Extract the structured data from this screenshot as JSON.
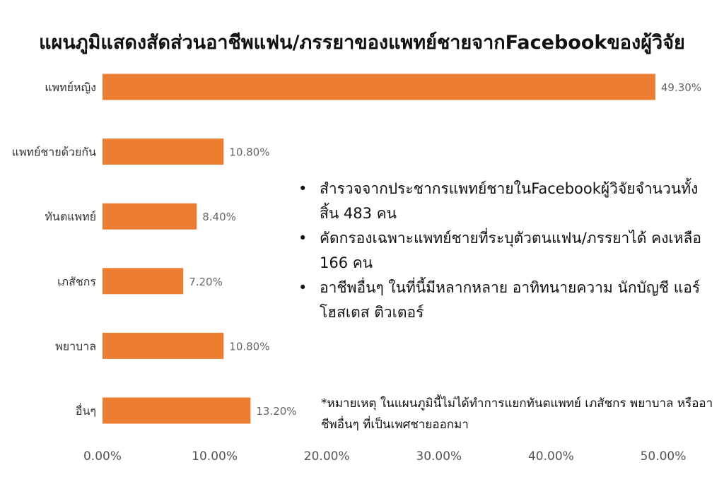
{
  "chart_data": {
    "type": "bar",
    "orientation": "horizontal",
    "title": "แผนภูมิแสดงสัดส่วนอาชีพแฟน/ภรรยาของแพทย์ชายจากFacebookของผู้วิจัย",
    "categories": [
      "แพทย์หญิง",
      "แพทย์ชายด้วยกัน",
      "ทันตแพทย์",
      "เภสัชกร",
      "พยาบาล",
      "อื่นๆ"
    ],
    "values": [
      49.3,
      10.8,
      8.4,
      7.2,
      10.8,
      13.2
    ],
    "data_labels": [
      "49.30%",
      "10.80%",
      "8.40%",
      "7.20%",
      "10.80%",
      "13.20%"
    ],
    "x_ticks": [
      "0.00%",
      "10.00%",
      "20.00%",
      "30.00%",
      "40.00%",
      "50.00%"
    ],
    "xlim": [
      0,
      50
    ],
    "xlabel": "",
    "ylabel": "",
    "grid": false,
    "legend": "none",
    "bar_color": "#ED7D31"
  },
  "notes": [
    "สำรวจจากประชากรแพทย์ชายในFacebookผู้วิจัยจำนวนทั้งสิ้น 483 คน",
    "คัดกรองเฉพาะแพทย์ชายที่ระบุตัวตนแฟน/ภรรยาได้ คงเหลือ 166 คน",
    "อาชีพอื่นๆ ในที่นี้มีหลากหลาย อาทิทนายความ นักบัญชี แอร์โฮสเตส ติวเตอร์"
  ],
  "footnote": "*หมายเหตุ ในแผนภูมินี้ไม่ได้ทำการแยกทันตแพทย์ เภสัชกร พยาบาล หรืออาชีพอื่นๆ ที่เป็นเพศชายออกมา"
}
